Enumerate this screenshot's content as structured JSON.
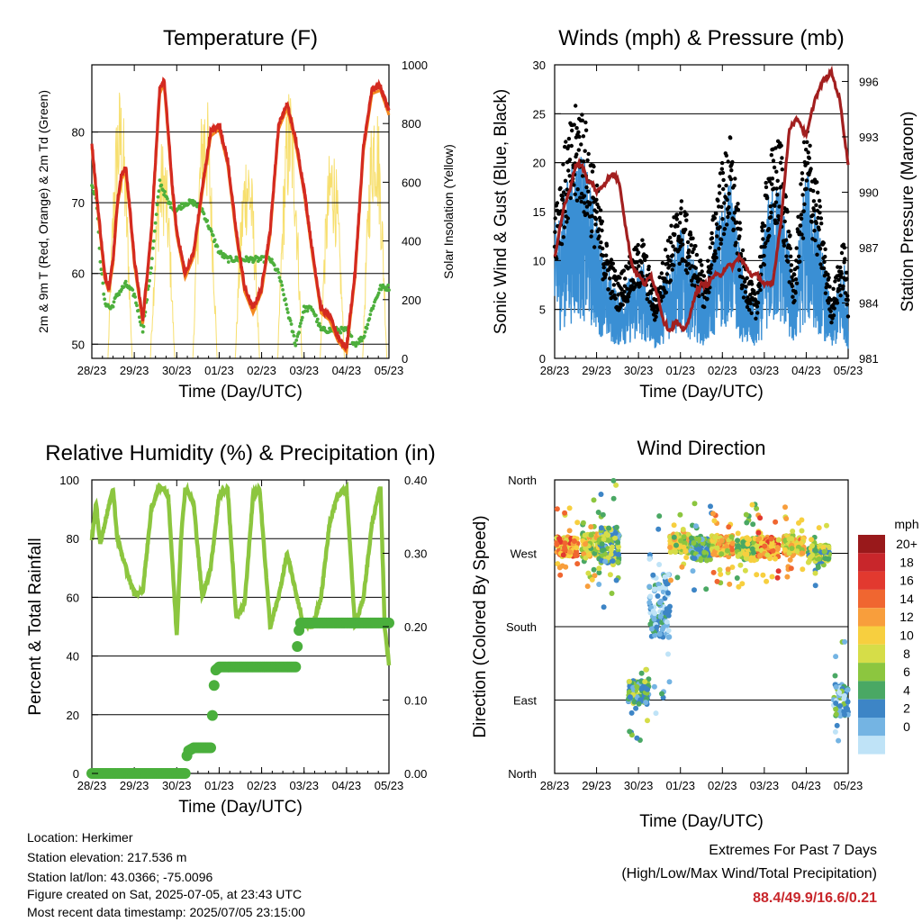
{
  "chart_data": [
    {
      "type": "line",
      "title": "Temperature (F)",
      "xlabel": "Time (Day/UTC)",
      "ylabel": "2m & 9m T (Red, Orange) & 2m Td (Green)",
      "ylabel_right": "Solar Insolation (Yellow)",
      "x_ticks": [
        "28/23",
        "29/23",
        "30/23",
        "01/23",
        "02/23",
        "03/23",
        "04/23",
        "05/23"
      ],
      "y_ticks": [
        50,
        60,
        70,
        80
      ],
      "y_ticks_right": [
        0,
        200,
        400,
        600,
        800,
        1000
      ],
      "ylim": [
        48,
        89.5
      ],
      "ylim_right": [
        0,
        1000
      ],
      "grid": true,
      "colors": {
        "temp_2m": "#d42a20",
        "temp_9m": "#f4891e",
        "dewpoint": "#4daf3c",
        "solar": "#f7df6e"
      },
      "series": [
        {
          "name": "2m T",
          "color": "#d42a20",
          "x": [
            0,
            0.1,
            0.2,
            0.3,
            0.4,
            0.5,
            0.6,
            0.7,
            0.8,
            0.9,
            1,
            1.2,
            1.4,
            1.5,
            1.6,
            1.7,
            1.8,
            1.9,
            2,
            2.2,
            2.4,
            2.6,
            2.8,
            3,
            3.2,
            3.4,
            3.6,
            3.8,
            4,
            4.2,
            4.4,
            4.6,
            4.8,
            5,
            5.2,
            5.4,
            5.6,
            5.8,
            6,
            6.2,
            6.4,
            6.6,
            6.8,
            7
          ],
          "y": [
            78.5,
            72,
            66,
            60,
            58,
            62,
            70,
            74,
            75,
            69,
            62,
            53.5,
            66,
            76,
            86,
            87.5,
            80,
            72,
            66,
            60,
            63,
            72,
            80,
            81,
            76,
            66,
            58,
            55,
            58,
            66,
            81,
            84,
            79,
            72,
            63,
            55,
            54,
            51,
            49.5,
            60,
            78,
            86,
            86.5,
            83
          ]
        },
        {
          "name": "2m Td",
          "color": "#4daf3c",
          "x": [
            0,
            0.1,
            0.2,
            0.3,
            0.45,
            0.6,
            0.8,
            1,
            1.2,
            1.4,
            1.6,
            1.8,
            2,
            2.2,
            2.4,
            2.6,
            2.8,
            3,
            3.2,
            3.4,
            3.6,
            3.8,
            4,
            4.2,
            4.4,
            4.6,
            4.8,
            5,
            5.2,
            5.4,
            5.6,
            5.8,
            6,
            6.2,
            6.4,
            6.6,
            6.8,
            7
          ],
          "y": [
            72.5,
            71,
            62,
            56,
            55,
            57,
            58.5,
            57,
            52,
            61,
            73,
            70,
            69,
            70,
            70,
            69,
            66,
            63,
            62,
            62,
            62,
            62,
            62,
            62,
            60,
            55,
            50,
            55,
            55,
            52,
            52,
            52,
            52,
            50,
            51,
            55,
            58,
            58
          ]
        }
      ]
    },
    {
      "type": "line",
      "title": "Winds (mph) & Pressure (mb)",
      "xlabel": "Time (Day/UTC)",
      "ylabel": "Sonic Wind & Gust (Blue, Black)",
      "ylabel_right": "Station Pressure (Maroon)",
      "x_ticks": [
        "28/23",
        "29/23",
        "30/23",
        "01/23",
        "02/23",
        "03/23",
        "04/23",
        "05/23"
      ],
      "y_ticks": [
        0,
        5,
        10,
        15,
        20,
        25,
        30
      ],
      "y_ticks_right": [
        981,
        984,
        987,
        990,
        993,
        996
      ],
      "ylim": [
        0,
        30
      ],
      "ylim_right": [
        981,
        996.9
      ],
      "grid": true,
      "colors": {
        "wind": "#3a8fd4",
        "gust": "#000000",
        "pressure": "#a21f1f"
      },
      "series": [
        {
          "name": "Pressure",
          "color": "#a21f1f",
          "x": [
            0,
            0.2,
            0.35,
            0.5,
            0.65,
            0.8,
            0.9,
            1,
            1.2,
            1.4,
            1.55,
            1.7,
            1.85,
            2,
            2.15,
            2.3,
            2.45,
            2.6,
            2.75,
            2.9,
            3.05,
            3.2,
            3.35,
            3.5,
            3.65,
            3.8,
            3.95,
            4.1,
            4.25,
            4.4,
            4.55,
            4.7,
            4.85,
            5,
            5.2,
            5.4,
            5.6,
            5.8,
            6,
            6.2,
            6.4,
            6.6,
            6.8,
            7
          ],
          "y": [
            986.5,
            989,
            990,
            991.5,
            991.5,
            990.5,
            990.5,
            990,
            990.5,
            991,
            990.5,
            988,
            986,
            985.5,
            985,
            985.5,
            984.5,
            983,
            982.5,
            983,
            982.5,
            983,
            984.5,
            985,
            985,
            985.5,
            985.5,
            986,
            986,
            986.5,
            986,
            985.5,
            985.5,
            985,
            985,
            988.5,
            993.5,
            994,
            993,
            995,
            996,
            996.5,
            995,
            991.5
          ]
        }
      ]
    },
    {
      "type": "line",
      "title": "Relative Humidity (%) & Precipitation (in)",
      "xlabel": "Time (Day/UTC)",
      "ylabel": "Percent & Total Rainfall",
      "x_ticks": [
        "28/23",
        "29/23",
        "30/23",
        "01/23",
        "02/23",
        "03/23",
        "04/23",
        "05/23"
      ],
      "y_ticks": [
        0,
        20,
        40,
        60,
        80,
        100
      ],
      "y_ticks_right": [
        "0.00",
        "0.10",
        "0.20",
        "0.30",
        "0.40"
      ],
      "ylim": [
        0,
        100
      ],
      "ylim_right": [
        0,
        0.4
      ],
      "grid": true,
      "colors": {
        "rh": "#8cc63f",
        "precip": "#4aaf3c"
      },
      "series": [
        {
          "name": "RH",
          "color": "#8cc63f",
          "x": [
            0,
            0.1,
            0.2,
            0.3,
            0.5,
            0.6,
            0.8,
            1,
            1.2,
            1.4,
            1.6,
            1.8,
            2,
            2.1,
            2.2,
            2.3,
            2.4,
            2.6,
            2.8,
            3,
            3.2,
            3.4,
            3.6,
            3.8,
            3.95,
            4.2,
            4.4,
            4.6,
            4.8,
            5,
            5.2,
            5.4,
            5.6,
            5.8,
            6,
            6.2,
            6.4,
            6.6,
            6.8,
            6.9,
            7
          ],
          "y": [
            80,
            92,
            78,
            85,
            97,
            80,
            70,
            61,
            62,
            90,
            98,
            95,
            47,
            80,
            97,
            95,
            92,
            60,
            70,
            95,
            97,
            53,
            58,
            95,
            97,
            50,
            60,
            75,
            62,
            50,
            50,
            60,
            85,
            95,
            97,
            50,
            60,
            85,
            98,
            50,
            37
          ]
        },
        {
          "name": "Precipitation",
          "color": "#4aaf3c",
          "x": [
            0,
            0.5,
            1,
            1.5,
            2.2,
            2.25,
            2.4,
            2.8,
            2.85,
            2.9,
            3,
            3.5,
            4,
            4.5,
            4.8,
            4.85,
            4.9,
            5.5,
            6,
            6.5,
            7
          ],
          "y": [
            0,
            0,
            0,
            0,
            0,
            0.03,
            0.035,
            0.035,
            0.09,
            0.14,
            0.145,
            0.145,
            0.145,
            0.145,
            0.145,
            0.18,
            0.205,
            0.205,
            0.205,
            0.205,
            0.205
          ]
        }
      ]
    },
    {
      "type": "scatter",
      "title": "Wind Direction",
      "xlabel": "Time (Day/UTC)",
      "ylabel": "Direction (Colored By Speed)",
      "x_ticks": [
        "28/23",
        "29/23",
        "30/23",
        "01/23",
        "02/23",
        "03/23",
        "04/23",
        "05/23"
      ],
      "y_ticks": [
        "North",
        "East",
        "South",
        "West",
        "North"
      ],
      "grid": true,
      "legend": {
        "title": "mph",
        "position": "right",
        "labels": [
          "20+",
          "18",
          "16",
          "14",
          "12",
          "10",
          "8",
          "6",
          "4",
          "2",
          "0"
        ],
        "colors": [
          "#99191b",
          "#c8262b",
          "#e2392f",
          "#f06630",
          "#f89e3c",
          "#f7cf3f",
          "#d6dd48",
          "#8cc63f",
          "#4aa864",
          "#3d85c6",
          "#74b4e3",
          "#bfe3f7"
        ]
      },
      "clusters": [
        {
          "x": 0.3,
          "dir": 278,
          "spread": 12,
          "speed": 14
        },
        {
          "x": 0.9,
          "dir": 280,
          "spread": 14,
          "speed": 10
        },
        {
          "x": 1.3,
          "dir": 280,
          "spread": 22,
          "speed": 6
        },
        {
          "x": 2.0,
          "dir": 100,
          "spread": 15,
          "speed": 6
        },
        {
          "x": 2.5,
          "dir": 205,
          "spread": 40,
          "speed": 3
        },
        {
          "x": 3.0,
          "dir": 282,
          "spread": 12,
          "speed": 10
        },
        {
          "x": 3.5,
          "dir": 275,
          "spread": 14,
          "speed": 5
        },
        {
          "x": 4.0,
          "dir": 280,
          "spread": 12,
          "speed": 12
        },
        {
          "x": 4.6,
          "dir": 275,
          "spread": 14,
          "speed": 9
        },
        {
          "x": 5.1,
          "dir": 278,
          "spread": 12,
          "speed": 14
        },
        {
          "x": 5.7,
          "dir": 280,
          "spread": 12,
          "speed": 12
        },
        {
          "x": 6.3,
          "dir": 270,
          "spread": 10,
          "speed": 8
        },
        {
          "x": 6.9,
          "dir": 90,
          "spread": 20,
          "speed": 4
        }
      ]
    }
  ],
  "station": {
    "location": "Location: Herkimer",
    "elevation": "Station elevation: 217.536 m",
    "latlon": "Station lat/lon: 43.0366; -75.0096",
    "created": "Figure created on Sat, 2025-07-05, at 23:43 UTC",
    "recent": "Most recent data timestamp: 2025/07/05 23:15:00"
  },
  "extremes": {
    "title": "Extremes For Past 7 Days",
    "subtitle": "(High/Low/Max Wind/Total Precipitation)",
    "values": "88.4/49.9/16.6/0.21"
  }
}
